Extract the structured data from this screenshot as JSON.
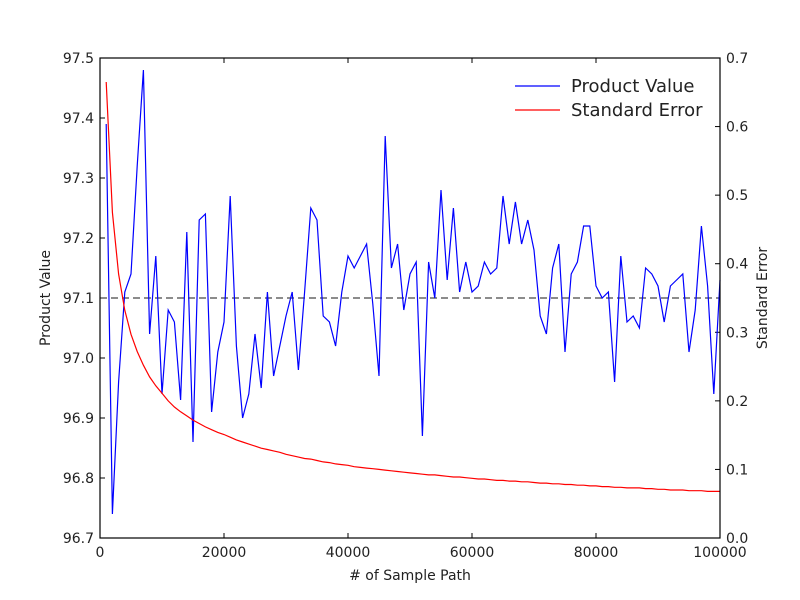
{
  "chart_data": {
    "type": "line",
    "xlabel": "# of Sample Path",
    "ylabel_left": "Product Value",
    "ylabel_right": "Standard Error",
    "xlim": [
      0,
      100000
    ],
    "ylim_left": [
      96.7,
      97.5
    ],
    "ylim_right": [
      0.0,
      0.7
    ],
    "x_ticks": [
      0,
      20000,
      40000,
      60000,
      80000,
      100000
    ],
    "x_tick_labels": [
      "0",
      "20000",
      "40000",
      "60000",
      "80000",
      "100000"
    ],
    "y_left_ticks": [
      96.7,
      96.8,
      96.9,
      97.0,
      97.1,
      97.2,
      97.3,
      97.4,
      97.5
    ],
    "y_left_tick_labels": [
      "96.7",
      "96.8",
      "96.9",
      "97.0",
      "97.1",
      "97.2",
      "97.3",
      "97.4",
      "97.5"
    ],
    "y_right_ticks": [
      0.0,
      0.1,
      0.2,
      0.3,
      0.4,
      0.5,
      0.6,
      0.7
    ],
    "y_right_tick_labels": [
      "0.0",
      "0.1",
      "0.2",
      "0.3",
      "0.4",
      "0.5",
      "0.6",
      "0.7"
    ],
    "reference_line": {
      "y": 97.1,
      "style": "dashed",
      "color": "#666666"
    },
    "legend_position": "top-right",
    "grid": false,
    "series": [
      {
        "name": "Product Value",
        "axis": "left",
        "color": "#0000ff",
        "x": [
          1000,
          2000,
          3000,
          4000,
          5000,
          6000,
          7000,
          8000,
          9000,
          10000,
          11000,
          12000,
          13000,
          14000,
          15000,
          16000,
          17000,
          18000,
          19000,
          20000,
          21000,
          22000,
          23000,
          24000,
          25000,
          26000,
          27000,
          28000,
          29000,
          30000,
          31000,
          32000,
          33000,
          34000,
          35000,
          36000,
          37000,
          38000,
          39000,
          40000,
          41000,
          42000,
          43000,
          44000,
          45000,
          46000,
          47000,
          48000,
          49000,
          50000,
          51000,
          52000,
          53000,
          54000,
          55000,
          56000,
          57000,
          58000,
          59000,
          60000,
          61000,
          62000,
          63000,
          64000,
          65000,
          66000,
          67000,
          68000,
          69000,
          70000,
          71000,
          72000,
          73000,
          74000,
          75000,
          76000,
          77000,
          78000,
          79000,
          80000,
          81000,
          82000,
          83000,
          84000,
          85000,
          86000,
          87000,
          88000,
          89000,
          90000,
          91000,
          92000,
          93000,
          94000,
          95000,
          96000,
          97000,
          98000,
          99000,
          100000
        ],
        "y": [
          97.39,
          96.74,
          96.96,
          97.11,
          97.14,
          97.32,
          97.48,
          97.04,
          97.17,
          96.94,
          97.08,
          97.06,
          96.93,
          97.21,
          96.86,
          97.23,
          97.24,
          96.91,
          97.01,
          97.06,
          97.27,
          97.02,
          96.9,
          96.94,
          97.04,
          96.95,
          97.11,
          96.97,
          97.02,
          97.07,
          97.11,
          96.98,
          97.11,
          97.25,
          97.23,
          97.07,
          97.06,
          97.02,
          97.11,
          97.17,
          97.15,
          97.17,
          97.19,
          97.09,
          96.97,
          97.37,
          97.15,
          97.19,
          97.08,
          97.14,
          97.16,
          96.87,
          97.16,
          97.1,
          97.28,
          97.13,
          97.25,
          97.11,
          97.16,
          97.11,
          97.12,
          97.16,
          97.14,
          97.15,
          97.27,
          97.19,
          97.26,
          97.19,
          97.23,
          97.18,
          97.07,
          97.04,
          97.15,
          97.19,
          97.01,
          97.14,
          97.16,
          97.22,
          97.22,
          97.12,
          97.1,
          97.11,
          96.96,
          97.17,
          97.06,
          97.07,
          97.05,
          97.15,
          97.14,
          97.12,
          97.06,
          97.12,
          97.13,
          97.14,
          97.01,
          97.08,
          97.22,
          97.12,
          96.94,
          97.13
        ]
      },
      {
        "name": "Standard Error",
        "axis": "right",
        "color": "#ff0000",
        "x": [
          1000,
          2000,
          3000,
          4000,
          5000,
          6000,
          7000,
          8000,
          9000,
          10000,
          11000,
          12000,
          13000,
          14000,
          15000,
          16000,
          17000,
          18000,
          19000,
          20000,
          21000,
          22000,
          23000,
          24000,
          25000,
          26000,
          27000,
          28000,
          29000,
          30000,
          31000,
          32000,
          33000,
          34000,
          35000,
          36000,
          37000,
          38000,
          39000,
          40000,
          41000,
          42000,
          43000,
          44000,
          45000,
          46000,
          47000,
          48000,
          49000,
          50000,
          51000,
          52000,
          53000,
          54000,
          55000,
          56000,
          57000,
          58000,
          59000,
          60000,
          61000,
          62000,
          63000,
          64000,
          65000,
          66000,
          67000,
          68000,
          69000,
          70000,
          71000,
          72000,
          73000,
          74000,
          75000,
          76000,
          77000,
          78000,
          79000,
          80000,
          81000,
          82000,
          83000,
          84000,
          85000,
          86000,
          87000,
          88000,
          89000,
          90000,
          91000,
          92000,
          93000,
          94000,
          95000,
          96000,
          97000,
          98000,
          99000,
          100000
        ],
        "y": [
          0.665,
          0.475,
          0.385,
          0.332,
          0.297,
          0.272,
          0.252,
          0.235,
          0.222,
          0.211,
          0.2,
          0.191,
          0.184,
          0.178,
          0.172,
          0.167,
          0.162,
          0.158,
          0.154,
          0.151,
          0.147,
          0.143,
          0.14,
          0.137,
          0.134,
          0.131,
          0.129,
          0.127,
          0.125,
          0.122,
          0.12,
          0.118,
          0.116,
          0.115,
          0.113,
          0.111,
          0.11,
          0.108,
          0.107,
          0.106,
          0.104,
          0.103,
          0.102,
          0.101,
          0.1,
          0.099,
          0.098,
          0.097,
          0.096,
          0.095,
          0.094,
          0.093,
          0.092,
          0.092,
          0.091,
          0.09,
          0.089,
          0.089,
          0.088,
          0.087,
          0.086,
          0.086,
          0.085,
          0.084,
          0.084,
          0.083,
          0.083,
          0.082,
          0.082,
          0.081,
          0.08,
          0.08,
          0.079,
          0.079,
          0.078,
          0.078,
          0.077,
          0.077,
          0.076,
          0.076,
          0.075,
          0.075,
          0.074,
          0.074,
          0.073,
          0.073,
          0.073,
          0.072,
          0.072,
          0.071,
          0.071,
          0.07,
          0.07,
          0.07,
          0.069,
          0.069,
          0.069,
          0.068,
          0.068,
          0.068
        ]
      }
    ]
  }
}
